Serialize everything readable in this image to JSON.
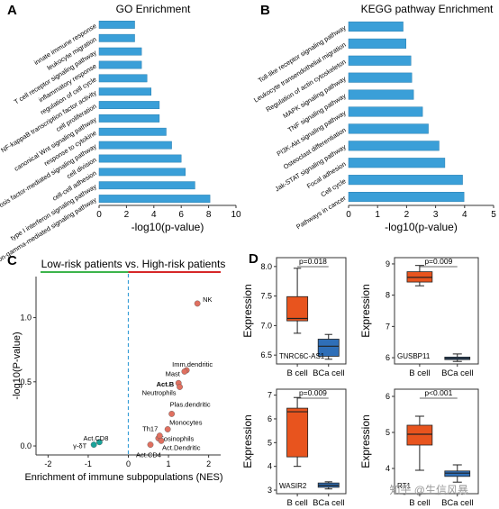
{
  "panels": {
    "A": {
      "letter": "A",
      "title": "GO Enrichment"
    },
    "B": {
      "letter": "B",
      "title": "KEGG pathway Enrichment"
    },
    "C": {
      "letter": "C",
      "title": "Low-risk patients vs. High-risk patients"
    },
    "D": {
      "letter": "D"
    }
  },
  "colors": {
    "bar": "#3a9fd8",
    "bar_stroke": "#2a7fb0",
    "green_line": "#3cb44b",
    "red_line": "#d62728",
    "dash_line": "#3a9fd8",
    "high_point": "#e07060",
    "low_point": "#1aa39a",
    "box_bcell": "#e8541e",
    "box_bca": "#2f6fb8"
  },
  "chart_data": [
    {
      "id": "A",
      "type": "bar",
      "orientation": "horizontal",
      "title": "GO Enrichment",
      "xlabel": "-log10(p-value)",
      "xlim": [
        0,
        10
      ],
      "xticks": [
        "0",
        "2",
        "4",
        "6",
        "8",
        "10"
      ],
      "categories": [
        "innate immune response",
        "leukocyte migration",
        "T cell receptor signaling pathway",
        "inflammatory response",
        "regulation of cell cycle",
        "NF-kappaB transcription factor activity",
        "cell proliferation",
        "canonical Wnt signaling pathway",
        "response to cytokine",
        "tumor necrosis factor-mediated signaling pathway",
        "cell division",
        "cell-cell adhesion",
        "type I interferon signaling pathway",
        "interferon-gamma-mediated signaling pathway"
      ],
      "values": [
        2.6,
        2.6,
        3.1,
        3.1,
        3.5,
        3.8,
        4.4,
        4.4,
        4.9,
        5.3,
        6.0,
        6.3,
        7.0,
        8.1
      ]
    },
    {
      "id": "B",
      "type": "bar",
      "orientation": "horizontal",
      "title": "KEGG pathway Enrichment",
      "xlabel": "-log10(p-value)",
      "xlim": [
        0,
        5
      ],
      "xticks": [
        "0",
        "1",
        "2",
        "3",
        "4",
        "5"
      ],
      "categories": [
        "Toll-like receptor signaling pathway",
        "Leukocyte transendothelial migration",
        "Regulation of actin cytoskeleton",
        "MAPK signaling pathway",
        "TNF signaling pathway",
        "PI3K-Akt signaling pathway",
        "Osteoclast differentiation",
        "Jak-STAT signaling pathway",
        "Focal adhesion",
        "Cell cycle",
        "Pathways in cancer"
      ],
      "values": [
        1.88,
        1.98,
        2.15,
        2.18,
        2.24,
        2.55,
        2.75,
        3.12,
        3.32,
        3.93,
        3.98
      ]
    },
    {
      "id": "C",
      "type": "scatter",
      "title": "Low-risk patients vs. High-risk patients",
      "xlabel": "Enrichment of immune subpopulations (NES)",
      "ylabel": "-log10(P-value)",
      "xlim": [
        -2.3,
        2.3
      ],
      "ylim": [
        -0.07,
        1.32
      ],
      "xticks": [
        -2,
        -1,
        0,
        1,
        2
      ],
      "yticks": [
        0.0,
        0.5,
        1.0
      ],
      "xtick_labels": [
        "-2",
        "-1",
        "0",
        "1",
        "2"
      ],
      "ytick_labels": [
        "0.0",
        "0.5",
        "1.0"
      ],
      "points": [
        {
          "label": "NK",
          "x": 1.72,
          "y": 1.11,
          "group": "high",
          "bold": false
        },
        {
          "label": "Imm.dendritic",
          "x": 1.45,
          "y": 0.59,
          "group": "high",
          "bold": false
        },
        {
          "label": "Mast",
          "x": 1.4,
          "y": 0.58,
          "group": "high",
          "bold": false
        },
        {
          "label": "Act.B",
          "x": 1.25,
          "y": 0.49,
          "group": "high",
          "bold": true
        },
        {
          "label": "Neutrophils",
          "x": 1.28,
          "y": 0.46,
          "group": "high",
          "bold": false
        },
        {
          "label": "Plas.dendritic",
          "x": 1.08,
          "y": 0.25,
          "group": "high",
          "bold": false
        },
        {
          "label": "Monocytes",
          "x": 0.98,
          "y": 0.13,
          "group": "high",
          "bold": false
        },
        {
          "label": "Eosinophils",
          "x": 0.75,
          "y": 0.06,
          "group": "high",
          "bold": false
        },
        {
          "label": "Th17",
          "x": 0.78,
          "y": 0.08,
          "group": "high",
          "bold": false
        },
        {
          "label": "Act.Dendritic",
          "x": 0.82,
          "y": 0.04,
          "group": "high",
          "bold": false
        },
        {
          "label": "Act.CD4",
          "x": 0.55,
          "y": 0.01,
          "group": "high",
          "bold": false
        },
        {
          "label": "Act.CD8",
          "x": -0.72,
          "y": 0.03,
          "group": "low",
          "bold": false
        },
        {
          "label": "γ-δT",
          "x": -0.86,
          "y": 0.01,
          "group": "low",
          "bold": false
        }
      ]
    },
    {
      "id": "D1",
      "type": "box",
      "gene": "TNRC6C-AS1",
      "ylabel": "Expression",
      "ylim": [
        6.35,
        8.15
      ],
      "yticks": [
        "6.5",
        "7.0",
        "7.5",
        "8.0"
      ],
      "ytick_values": [
        6.5,
        7.0,
        7.5,
        8.0
      ],
      "pvalue": "p=0.018",
      "categories": [
        "B cell",
        "BCa cell"
      ],
      "boxes": [
        {
          "min": 6.87,
          "q1": 7.08,
          "median": 7.12,
          "q3": 7.49,
          "max": 7.97
        },
        {
          "min": 6.43,
          "q1": 6.48,
          "median": 6.65,
          "q3": 6.77,
          "max": 6.85
        }
      ]
    },
    {
      "id": "D2",
      "type": "box",
      "gene": "GUSBP11",
      "ylabel": "Expression",
      "ylim": [
        5.8,
        9.2
      ],
      "yticks": [
        "6",
        "7",
        "8",
        "9"
      ],
      "ytick_values": [
        6,
        7,
        8,
        9
      ],
      "pvalue": "p=0.009",
      "categories": [
        "B cell",
        "BCa cell"
      ],
      "boxes": [
        {
          "min": 8.3,
          "q1": 8.42,
          "median": 8.57,
          "q3": 8.75,
          "max": 8.95
        },
        {
          "min": 5.88,
          "q1": 5.94,
          "median": 5.98,
          "q3": 6.02,
          "max": 6.12
        }
      ]
    },
    {
      "id": "D3",
      "type": "box",
      "gene": "WASIR2",
      "ylabel": "Expression",
      "ylim": [
        2.85,
        7.25
      ],
      "yticks": [
        "3",
        "4",
        "5",
        "6",
        "7"
      ],
      "ytick_values": [
        3,
        4,
        5,
        6,
        7
      ],
      "pvalue": "p=0.009",
      "categories": [
        "B cell",
        "BCa cell"
      ],
      "boxes": [
        {
          "min": 4.0,
          "q1": 4.4,
          "median": 6.3,
          "q3": 6.45,
          "max": 6.9
        },
        {
          "min": 3.05,
          "q1": 3.12,
          "median": 3.2,
          "q3": 3.3,
          "max": 3.35
        }
      ]
    },
    {
      "id": "D4",
      "type": "box",
      "gene": "RT1",
      "ylabel": "Expression",
      "ylim": [
        3.3,
        6.2
      ],
      "yticks": [
        "4",
        "5",
        "6"
      ],
      "ytick_values": [
        4,
        5,
        6
      ],
      "pvalue": "p<0.001",
      "categories": [
        "B cell",
        "BCa cell"
      ],
      "boxes": [
        {
          "min": 3.95,
          "q1": 4.65,
          "median": 4.95,
          "q3": 5.2,
          "max": 5.45
        },
        {
          "min": 3.62,
          "q1": 3.78,
          "median": 3.87,
          "q3": 3.93,
          "max": 4.1
        }
      ]
    }
  ],
  "watermark": "知乎 @生信风暴"
}
